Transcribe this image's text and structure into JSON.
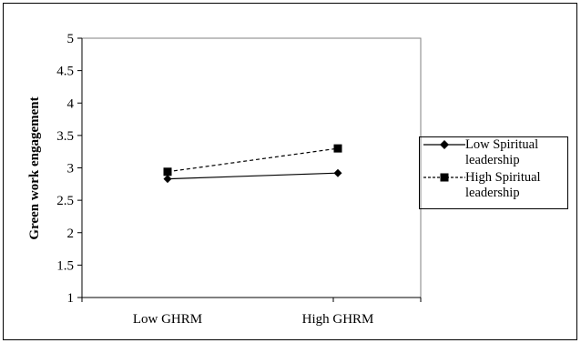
{
  "chart_data": {
    "type": "line",
    "title": "",
    "xlabel": "",
    "ylabel": "Green work engagement",
    "categories": [
      "Low GHRM",
      "High GHRM"
    ],
    "ylim": [
      1,
      5
    ],
    "yticks": [
      "1",
      "1.5",
      "2",
      "2.5",
      "3",
      "3.5",
      "4",
      "4.5",
      "5"
    ],
    "grid": false,
    "legend_position": "right",
    "series": [
      {
        "name": "Low Spiritual leadership",
        "values": [
          2.83,
          2.92
        ],
        "line": "solid",
        "marker": "diamond"
      },
      {
        "name": "High Spiritual leadership",
        "values": [
          2.94,
          3.3
        ],
        "line": "dashed",
        "marker": "square"
      }
    ]
  },
  "legend": {
    "items": [
      {
        "line1": "Low Spiritual",
        "line2": "leadership"
      },
      {
        "line1": "High Spiritual",
        "line2": "leadership"
      }
    ]
  },
  "colors": {
    "line": "#000000",
    "plot_border": "#808080"
  }
}
